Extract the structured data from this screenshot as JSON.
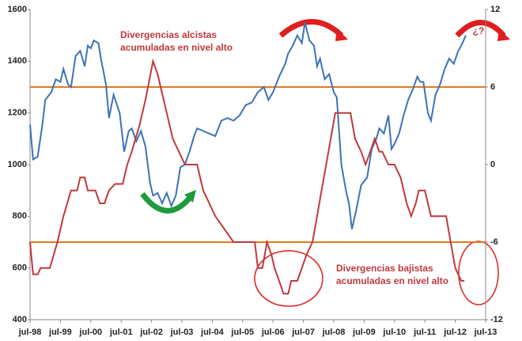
{
  "chart_data": {
    "type": "line",
    "xlim": [
      1998.5,
      2013.5
    ],
    "xticks": [
      {
        "value": 1998.5,
        "label": "jul-98"
      },
      {
        "value": 1999.5,
        "label": "jul-99"
      },
      {
        "value": 2000.5,
        "label": "jul-00"
      },
      {
        "value": 2001.5,
        "label": "jul-01"
      },
      {
        "value": 2002.5,
        "label": "jul-02"
      },
      {
        "value": 2003.5,
        "label": "jul-03"
      },
      {
        "value": 2004.5,
        "label": "jul-04"
      },
      {
        "value": 2005.5,
        "label": "jul-05"
      },
      {
        "value": 2006.5,
        "label": "jul-06"
      },
      {
        "value": 2007.5,
        "label": "jul-07"
      },
      {
        "value": 2008.5,
        "label": "jul-08"
      },
      {
        "value": 2009.5,
        "label": "jul-09"
      },
      {
        "value": 2010.5,
        "label": "jul-10"
      },
      {
        "value": 2011.5,
        "label": "jul-11"
      },
      {
        "value": 2012.5,
        "label": "jul-12"
      },
      {
        "value": 2013.5,
        "label": "jul-13"
      }
    ],
    "ylim": [
      400,
      1600
    ],
    "yticks": [
      400,
      600,
      800,
      1000,
      1200,
      1400,
      1600
    ],
    "y2lim": [
      -12,
      12
    ],
    "y2ticks": [
      -12,
      -6,
      0,
      6,
      12
    ],
    "reference_lines": {
      "axis": "y2",
      "values": [
        6,
        -6
      ],
      "color": "#e07b20"
    },
    "series": [
      {
        "color": "#3d72b8",
        "x": [
          1998.5,
          1998.6,
          1998.75,
          1998.9,
          1999.0,
          1999.2,
          1999.35,
          1999.5,
          1999.6,
          1999.75,
          1999.85,
          2000.0,
          2000.15,
          2000.3,
          2000.4,
          2000.5,
          2000.6,
          2000.75,
          2000.85,
          2001.0,
          2001.1,
          2001.25,
          2001.45,
          2001.6,
          2001.75,
          2001.85,
          2002.0,
          2002.15,
          2002.3,
          2002.45,
          2002.55,
          2002.7,
          2002.85,
          2003.0,
          2003.15,
          2003.3,
          2003.45,
          2003.6,
          2003.75,
          2003.9,
          2004.0,
          2004.2,
          2004.4,
          2004.6,
          2004.8,
          2005.0,
          2005.2,
          2005.4,
          2005.6,
          2005.8,
          2006.0,
          2006.2,
          2006.35,
          2006.5,
          2006.7,
          2006.9,
          2007.0,
          2007.15,
          2007.3,
          2007.45,
          2007.55,
          2007.7,
          2007.85,
          2007.95,
          2008.05,
          2008.2,
          2008.35,
          2008.5,
          2008.6,
          2008.75,
          2008.9,
          2009.0,
          2009.1,
          2009.25,
          2009.4,
          2009.6,
          2009.75,
          2009.9,
          2010.0,
          2010.15,
          2010.3,
          2010.4,
          2010.5,
          2010.65,
          2010.8,
          2010.95,
          2011.1,
          2011.25,
          2011.35,
          2011.45,
          2011.6,
          2011.7,
          2011.85,
          2012.0,
          2012.15,
          2012.3,
          2012.45,
          2012.6,
          2012.7,
          2012.85
        ],
        "values": [
          1155,
          1020,
          1030,
          1150,
          1250,
          1280,
          1330,
          1320,
          1370,
          1310,
          1300,
          1420,
          1440,
          1380,
          1460,
          1450,
          1480,
          1470,
          1400,
          1310,
          1180,
          1270,
          1200,
          1050,
          1130,
          1140,
          1090,
          1130,
          1070,
          930,
          880,
          890,
          850,
          890,
          840,
          880,
          990,
          1000,
          1050,
          1110,
          1140,
          1130,
          1120,
          1110,
          1170,
          1180,
          1170,
          1190,
          1230,
          1240,
          1280,
          1300,
          1250,
          1280,
          1340,
          1390,
          1430,
          1460,
          1500,
          1470,
          1550,
          1480,
          1460,
          1380,
          1410,
          1330,
          1350,
          1280,
          1260,
          1000,
          900,
          850,
          750,
          830,
          920,
          950,
          1060,
          1100,
          1140,
          1120,
          1190,
          1060,
          1080,
          1120,
          1190,
          1250,
          1290,
          1340,
          1320,
          1320,
          1200,
          1170,
          1270,
          1310,
          1370,
          1410,
          1390,
          1440,
          1460,
          1500
        ]
      },
      {
        "color": "#c0393b",
        "axis": "y2",
        "x": [
          1998.5,
          1998.6,
          1998.75,
          1998.85,
          1999.15,
          1999.4,
          1999.6,
          1999.85,
          2000.05,
          2000.15,
          2000.3,
          2000.4,
          2000.65,
          2000.8,
          2000.95,
          2001.1,
          2001.3,
          2001.55,
          2001.7,
          2001.85,
          2002.1,
          2002.3,
          2002.55,
          2002.7,
          2002.8,
          2003.0,
          2003.2,
          2003.4,
          2003.6,
          2004.0,
          2004.2,
          2004.4,
          2004.6,
          2004.9,
          2005.2,
          2005.9,
          2006.0,
          2006.15,
          2006.3,
          2006.45,
          2006.55,
          2006.7,
          2006.85,
          2007.0,
          2007.1,
          2007.3,
          2007.45,
          2007.6,
          2007.8,
          2007.95,
          2008.1,
          2008.25,
          2008.4,
          2008.55,
          2009.05,
          2009.2,
          2009.4,
          2009.55,
          2009.7,
          2009.85,
          2010.0,
          2010.1,
          2010.3,
          2010.5,
          2010.7,
          2010.9,
          2011.05,
          2011.2,
          2011.3,
          2011.5,
          2011.7,
          2011.85,
          2012.0,
          2012.2,
          2012.35,
          2012.5,
          2012.7,
          2012.8
        ],
        "values": [
          -6,
          -8.5,
          -8.5,
          -8,
          -8,
          -6,
          -4,
          -2,
          -2,
          -1,
          -1,
          -2,
          -2,
          -3,
          -3,
          -2,
          -1.5,
          -1.5,
          0,
          1,
          3,
          5,
          8,
          7,
          6,
          4,
          2,
          1,
          0,
          0,
          -2,
          -3,
          -4,
          -5,
          -6,
          -6,
          -8,
          -8,
          -6,
          -7,
          -8,
          -9,
          -10,
          -10,
          -9,
          -9,
          -8,
          -7,
          -6,
          -4,
          -2,
          0,
          2,
          4,
          4,
          2,
          1,
          0,
          1,
          2,
          1,
          1,
          0,
          0,
          -1,
          -3,
          -4,
          -3,
          -2,
          -2,
          -4,
          -4,
          -4,
          -4,
          -6,
          -8,
          -9,
          -9
        ]
      }
    ],
    "annotations": [
      {
        "lines": [
          "Divergencias alcistas",
          "acumuladas en nivel alto"
        ],
        "color": "#c0393b"
      },
      {
        "lines": [
          "Divergencias bajistas",
          "acumuladas en nivel alto"
        ],
        "color": "#c0393b"
      },
      {
        "lines": [
          "¿?"
        ],
        "color": "#c0393b"
      }
    ]
  }
}
